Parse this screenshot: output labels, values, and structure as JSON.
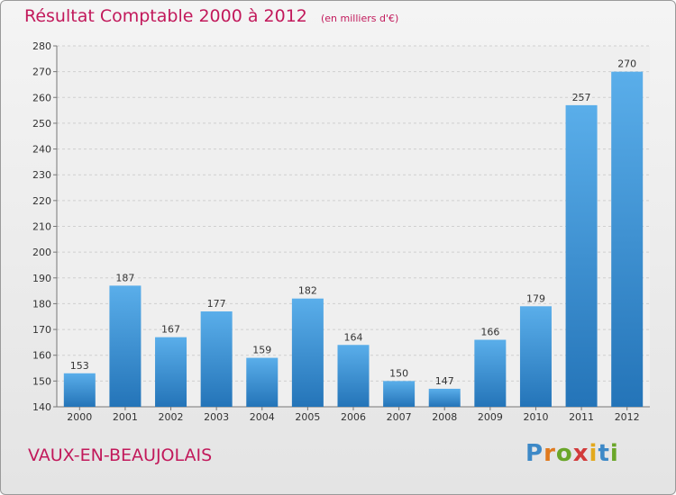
{
  "chart_data": {
    "type": "bar",
    "title": "Résultat Comptable 2000 à 2012",
    "subtitle": "(en milliers d'€)",
    "categories": [
      "2000",
      "2001",
      "2002",
      "2003",
      "2004",
      "2005",
      "2006",
      "2007",
      "2008",
      "2009",
      "2010",
      "2011",
      "2012"
    ],
    "values": [
      153,
      187,
      167,
      177,
      159,
      182,
      164,
      150,
      147,
      166,
      179,
      257,
      270
    ],
    "ylim": [
      140,
      280
    ],
    "yticks": [
      140,
      150,
      160,
      170,
      180,
      190,
      200,
      210,
      220,
      230,
      240,
      250,
      260,
      270,
      280
    ],
    "grid": true,
    "bar_color": "#3a8fd6"
  },
  "footer": {
    "commune": "VAUX-EN-BEAUJOLAIS",
    "logo_letters": [
      "P",
      "r",
      "o",
      "x",
      "i",
      "t",
      "i"
    ],
    "logo_colors": [
      "#3d89c7",
      "#e07a1e",
      "#6aa629",
      "#d23b3b",
      "#e3a91d",
      "#3d89c7",
      "#6aa629"
    ]
  }
}
